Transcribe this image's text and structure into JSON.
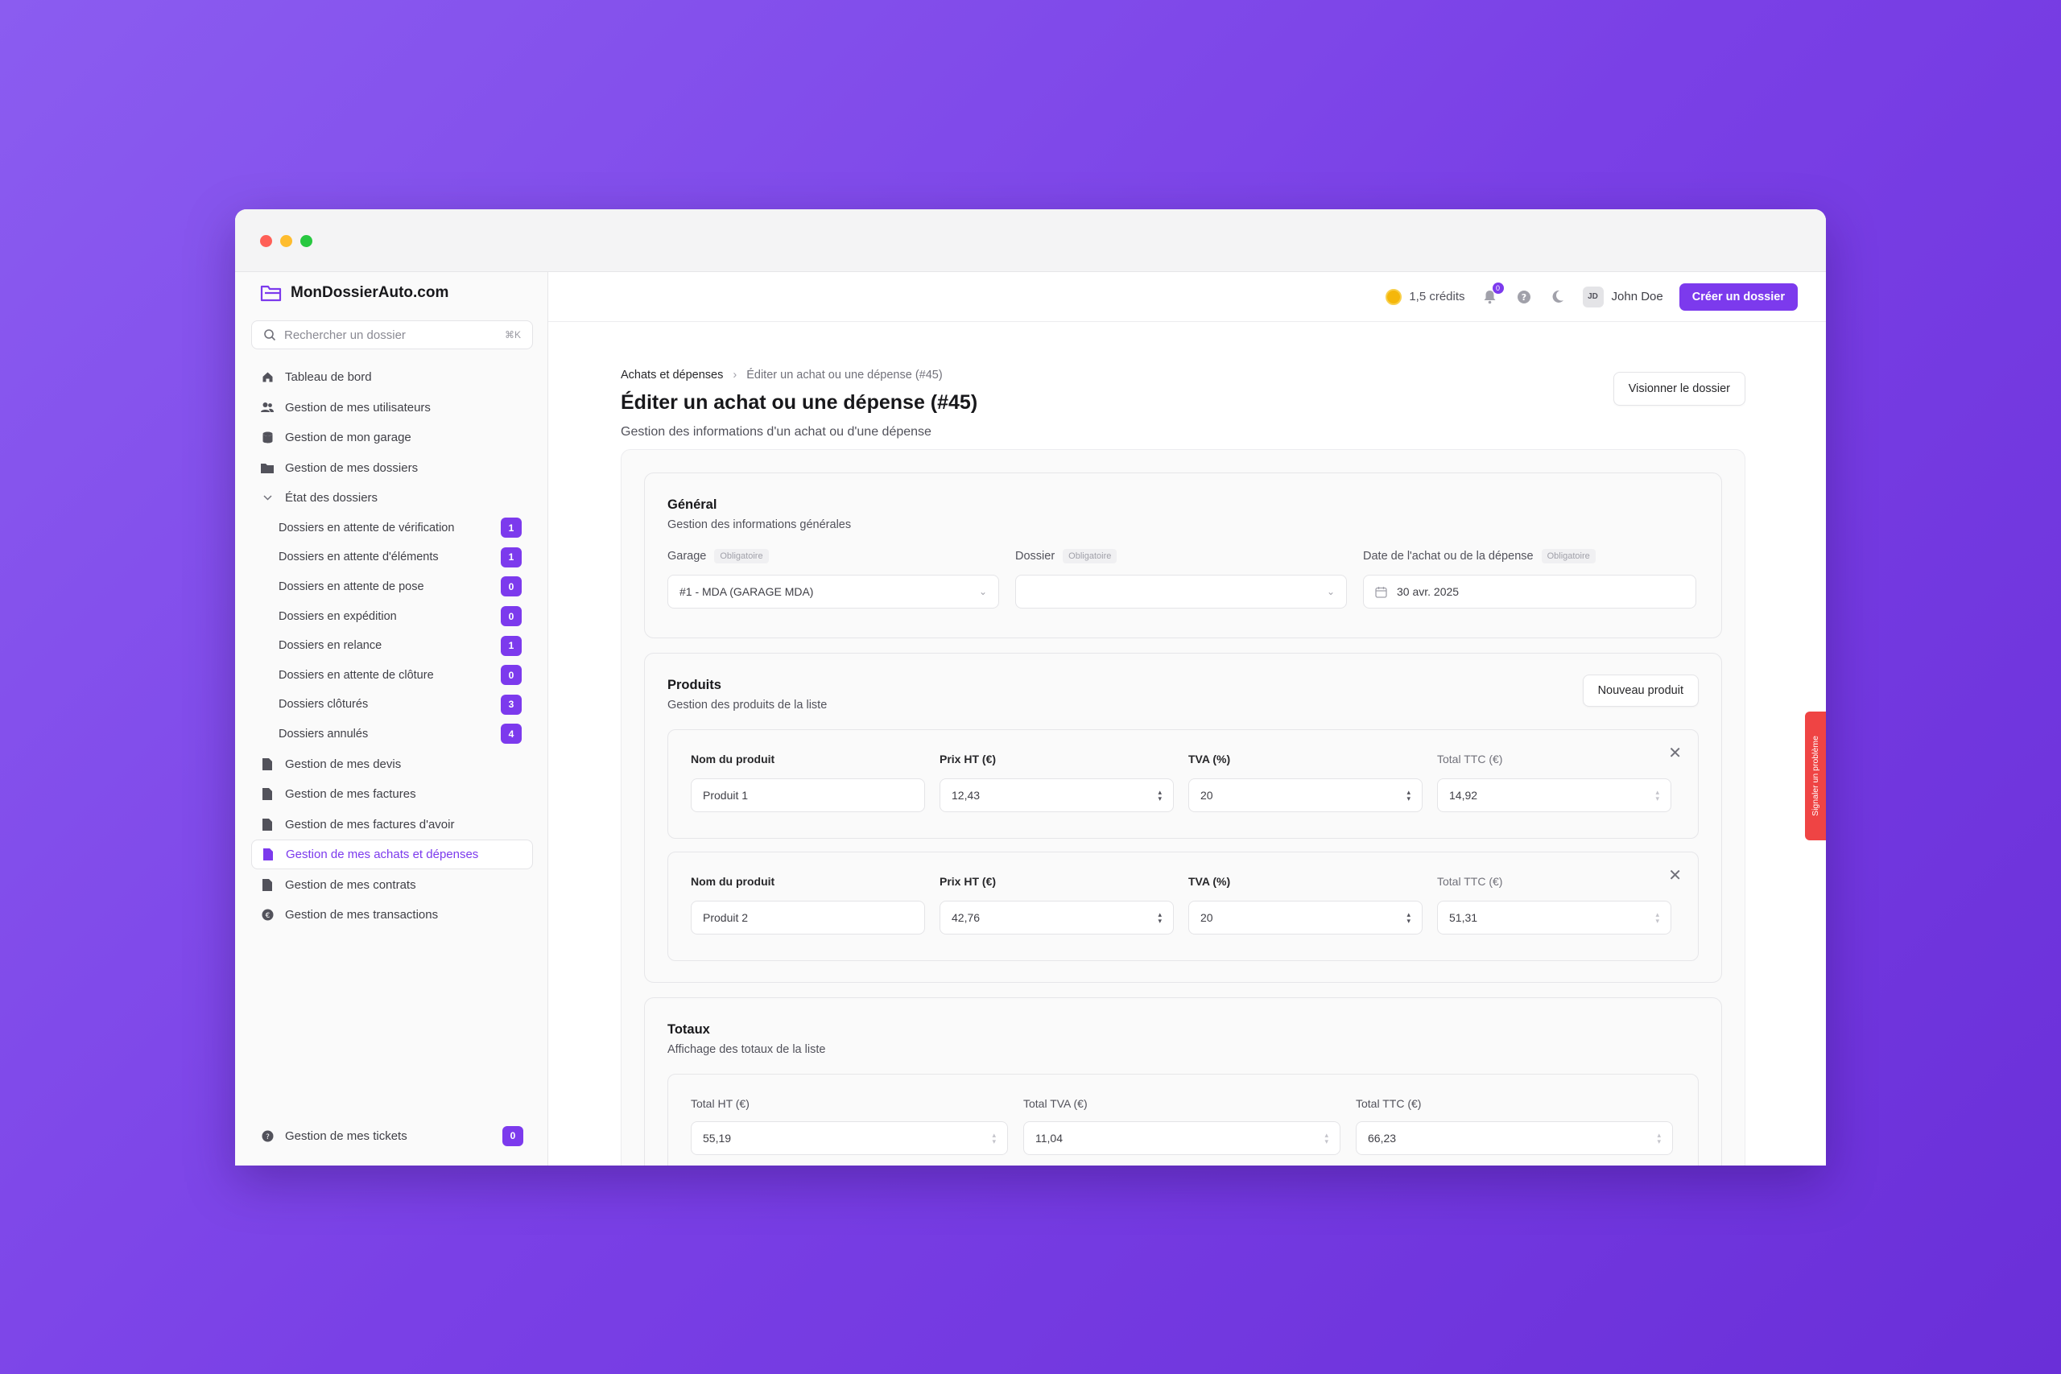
{
  "brand": {
    "name": "MonDossierAuto.com"
  },
  "search": {
    "placeholder": "Rechercher un dossier",
    "shortcut": "⌘K"
  },
  "nav": {
    "items": [
      {
        "label": "Tableau de bord",
        "icon": "home-icon"
      },
      {
        "label": "Gestion de mes utilisateurs",
        "icon": "users-icon"
      },
      {
        "label": "Gestion de mon garage",
        "icon": "database-icon"
      },
      {
        "label": "Gestion de mes dossiers",
        "icon": "folder-icon"
      }
    ],
    "state_group": {
      "label": "État des dossiers",
      "items": [
        {
          "label": "Dossiers en attente de vérification",
          "count": "1"
        },
        {
          "label": "Dossiers en attente d'éléments",
          "count": "1"
        },
        {
          "label": "Dossiers en attente de pose",
          "count": "0"
        },
        {
          "label": "Dossiers en expédition",
          "count": "0"
        },
        {
          "label": "Dossiers en relance",
          "count": "1"
        },
        {
          "label": "Dossiers en attente de clôture",
          "count": "0"
        },
        {
          "label": "Dossiers clôturés",
          "count": "3"
        },
        {
          "label": "Dossiers annulés",
          "count": "4"
        }
      ]
    },
    "items_after": [
      {
        "label": "Gestion de mes devis",
        "icon": "file-icon"
      },
      {
        "label": "Gestion de mes factures",
        "icon": "file-icon"
      },
      {
        "label": "Gestion de mes factures d'avoir",
        "icon": "file-icon"
      },
      {
        "label": "Gestion de mes achats et dépenses",
        "icon": "file-icon",
        "active": true
      },
      {
        "label": "Gestion de mes contrats",
        "icon": "file-icon"
      },
      {
        "label": "Gestion de mes transactions",
        "icon": "coin-icon"
      }
    ],
    "tickets": {
      "label": "Gestion de mes tickets",
      "count": "0"
    }
  },
  "topbar": {
    "credits": "1,5 crédits",
    "notifications_count": "0",
    "user_initials": "JD",
    "user_name": "John Doe",
    "create_button": "Créer un dossier"
  },
  "page": {
    "breadcrumb": [
      "Achats et dépenses",
      "Éditer un achat ou une dépense (#45)"
    ],
    "title": "Éditer un achat ou une dépense (#45)",
    "subtitle": "Gestion des informations d'un achat ou d'une dépense",
    "view_button": "Visionner le dossier"
  },
  "general": {
    "title": "Général",
    "subtitle": "Gestion des informations générales",
    "required_tag": "Obligatoire",
    "garage_label": "Garage",
    "garage_value": "#1 - MDA (GARAGE MDA)",
    "dossier_label": "Dossier",
    "dossier_value": "",
    "date_label": "Date de l'achat ou de la dépense",
    "date_value": "30 avr. 2025"
  },
  "products": {
    "title": "Produits",
    "subtitle": "Gestion des produits de la liste",
    "new_button": "Nouveau produit",
    "col_name": "Nom du produit",
    "col_price": "Prix HT (€)",
    "col_tva": "TVA (%)",
    "col_total": "Total TTC (€)",
    "rows": [
      {
        "name": "Produit 1",
        "price": "12,43",
        "tva": "20",
        "total": "14,92"
      },
      {
        "name": "Produit 2",
        "price": "42,76",
        "tva": "20",
        "total": "51,31"
      }
    ]
  },
  "totals": {
    "title": "Totaux",
    "subtitle": "Affichage des totaux de la liste",
    "ht_label": "Total HT (€)",
    "ht_value": "55,19",
    "tva_label": "Total TVA (€)",
    "tva_value": "11,04",
    "ttc_label": "Total TTC (€)",
    "ttc_value": "66,23"
  },
  "report_tab": "Signaler un problème",
  "colors": {
    "accent": "#7c3aed",
    "report": "#ef4444"
  }
}
